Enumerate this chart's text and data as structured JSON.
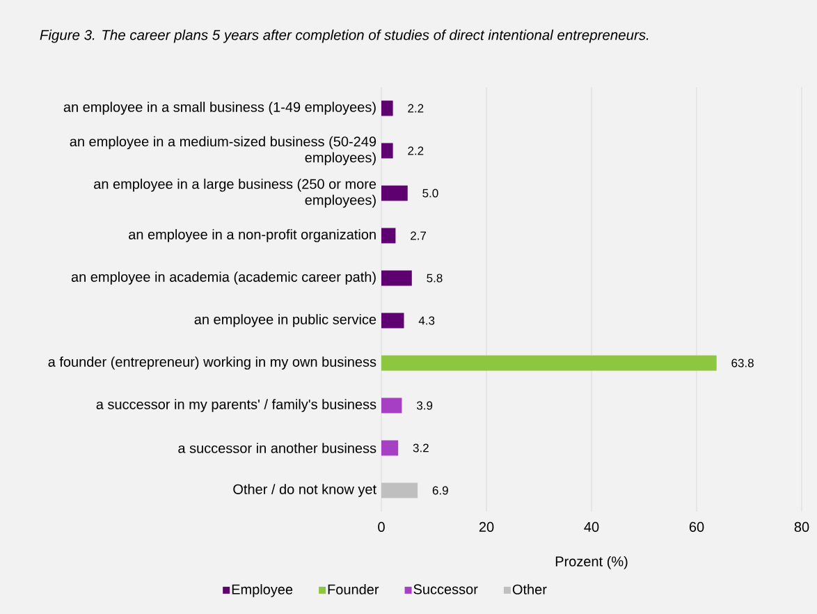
{
  "chart_data": {
    "type": "bar",
    "orientation": "horizontal",
    "title": "Figure 3. The career plans 5 years after completion of studies of direct intentional entrepreneurs.",
    "xlabel": "Prozent (%)",
    "categories": [
      "an employee in a small business (1-49 employees)",
      "an employee in a medium-sized business (50-249 employees)",
      "an employee in a large business (250 or more employees)",
      "an employee in a non-profit organization",
      "an employee in academia (academic career path)",
      "an employee in public service",
      "a founder (entrepreneur) working in my own business",
      "a successor in my parents' / family's business",
      "a successor in another business",
      "Other / do not know yet"
    ],
    "series": [
      {
        "name": "Employee",
        "color": "#5f0070",
        "values": [
          2.2,
          2.2,
          5.0,
          2.7,
          5.8,
          4.3,
          null,
          null,
          null,
          null
        ],
        "value_labels": [
          "2.2",
          "2.2",
          "5.0",
          "2.7",
          "5.8",
          "4.3",
          null,
          null,
          null,
          null
        ]
      },
      {
        "name": "Founder",
        "color": "#8dc63f",
        "values": [
          null,
          null,
          null,
          null,
          null,
          null,
          63.8,
          null,
          null,
          null
        ],
        "value_labels": [
          null,
          null,
          null,
          null,
          null,
          null,
          "63.8",
          null,
          null,
          null
        ]
      },
      {
        "name": "Successor",
        "color": "#a63fc4",
        "values": [
          null,
          null,
          null,
          null,
          null,
          null,
          null,
          3.9,
          3.2,
          null
        ],
        "value_labels": [
          null,
          null,
          null,
          null,
          null,
          null,
          null,
          "3.9",
          "3.2",
          null
        ]
      },
      {
        "name": "Other",
        "color": "#bfbfbf",
        "values": [
          null,
          null,
          null,
          null,
          null,
          null,
          null,
          null,
          null,
          6.9
        ],
        "value_labels": [
          null,
          null,
          null,
          null,
          null,
          null,
          null,
          null,
          null,
          "6.9"
        ]
      }
    ],
    "xlim": [
      0,
      80
    ],
    "xticks": [
      0,
      20,
      40,
      60,
      80
    ],
    "grid": "x",
    "legend": "bottom"
  }
}
